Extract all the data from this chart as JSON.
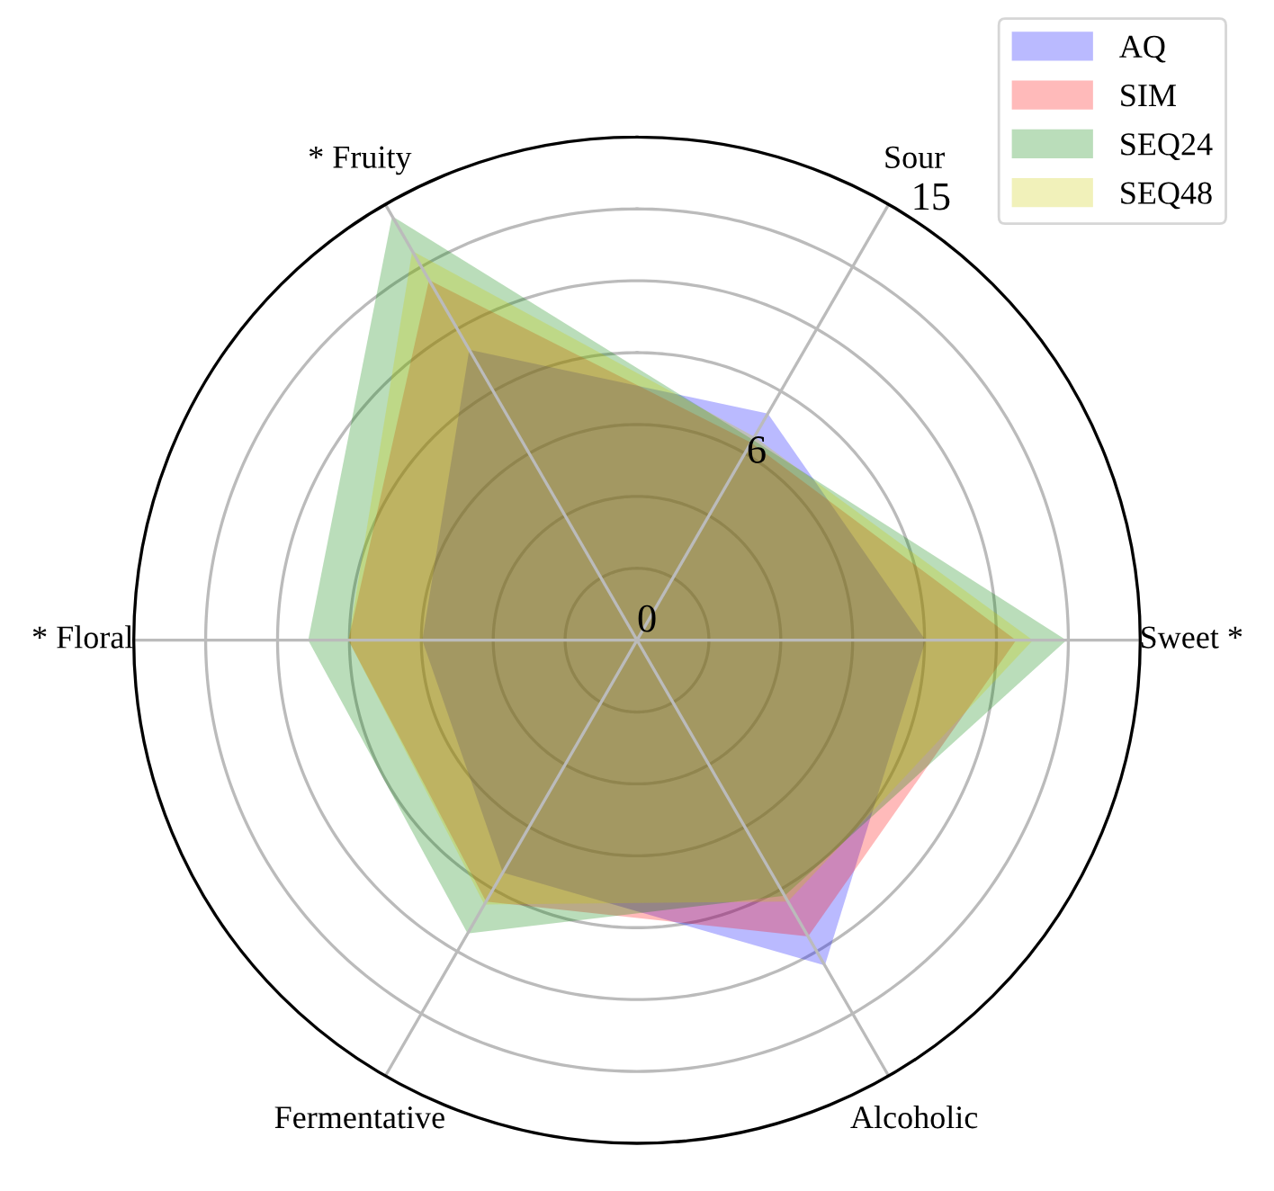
{
  "chart_data": {
    "type": "radar",
    "categories": [
      "Sour",
      "Sweet *",
      "Alcoholic",
      "Fermentative",
      "* Floral",
      "* Fruity"
    ],
    "series": [
      {
        "name": "AQ",
        "color": "#0000ff",
        "values": [
          7.8,
          8.6,
          11.2,
          8.0,
          6.4,
          10.0
        ]
      },
      {
        "name": "SIM",
        "color": "#ff0000",
        "values": [
          6.8,
          11.3,
          10.2,
          9.0,
          8.6,
          12.4
        ]
      },
      {
        "name": "SEQ24",
        "color": "#008000",
        "values": [
          6.9,
          12.8,
          8.8,
          10.1,
          9.8,
          14.6
        ]
      },
      {
        "name": "SEQ48",
        "color": "#cccc00",
        "values": [
          7.0,
          11.8,
          9.0,
          9.1,
          8.6,
          13.4
        ]
      }
    ],
    "ylim": [
      0,
      15
    ],
    "yticks": [
      0,
      6,
      15
    ],
    "grid": true,
    "legend": "top right"
  }
}
